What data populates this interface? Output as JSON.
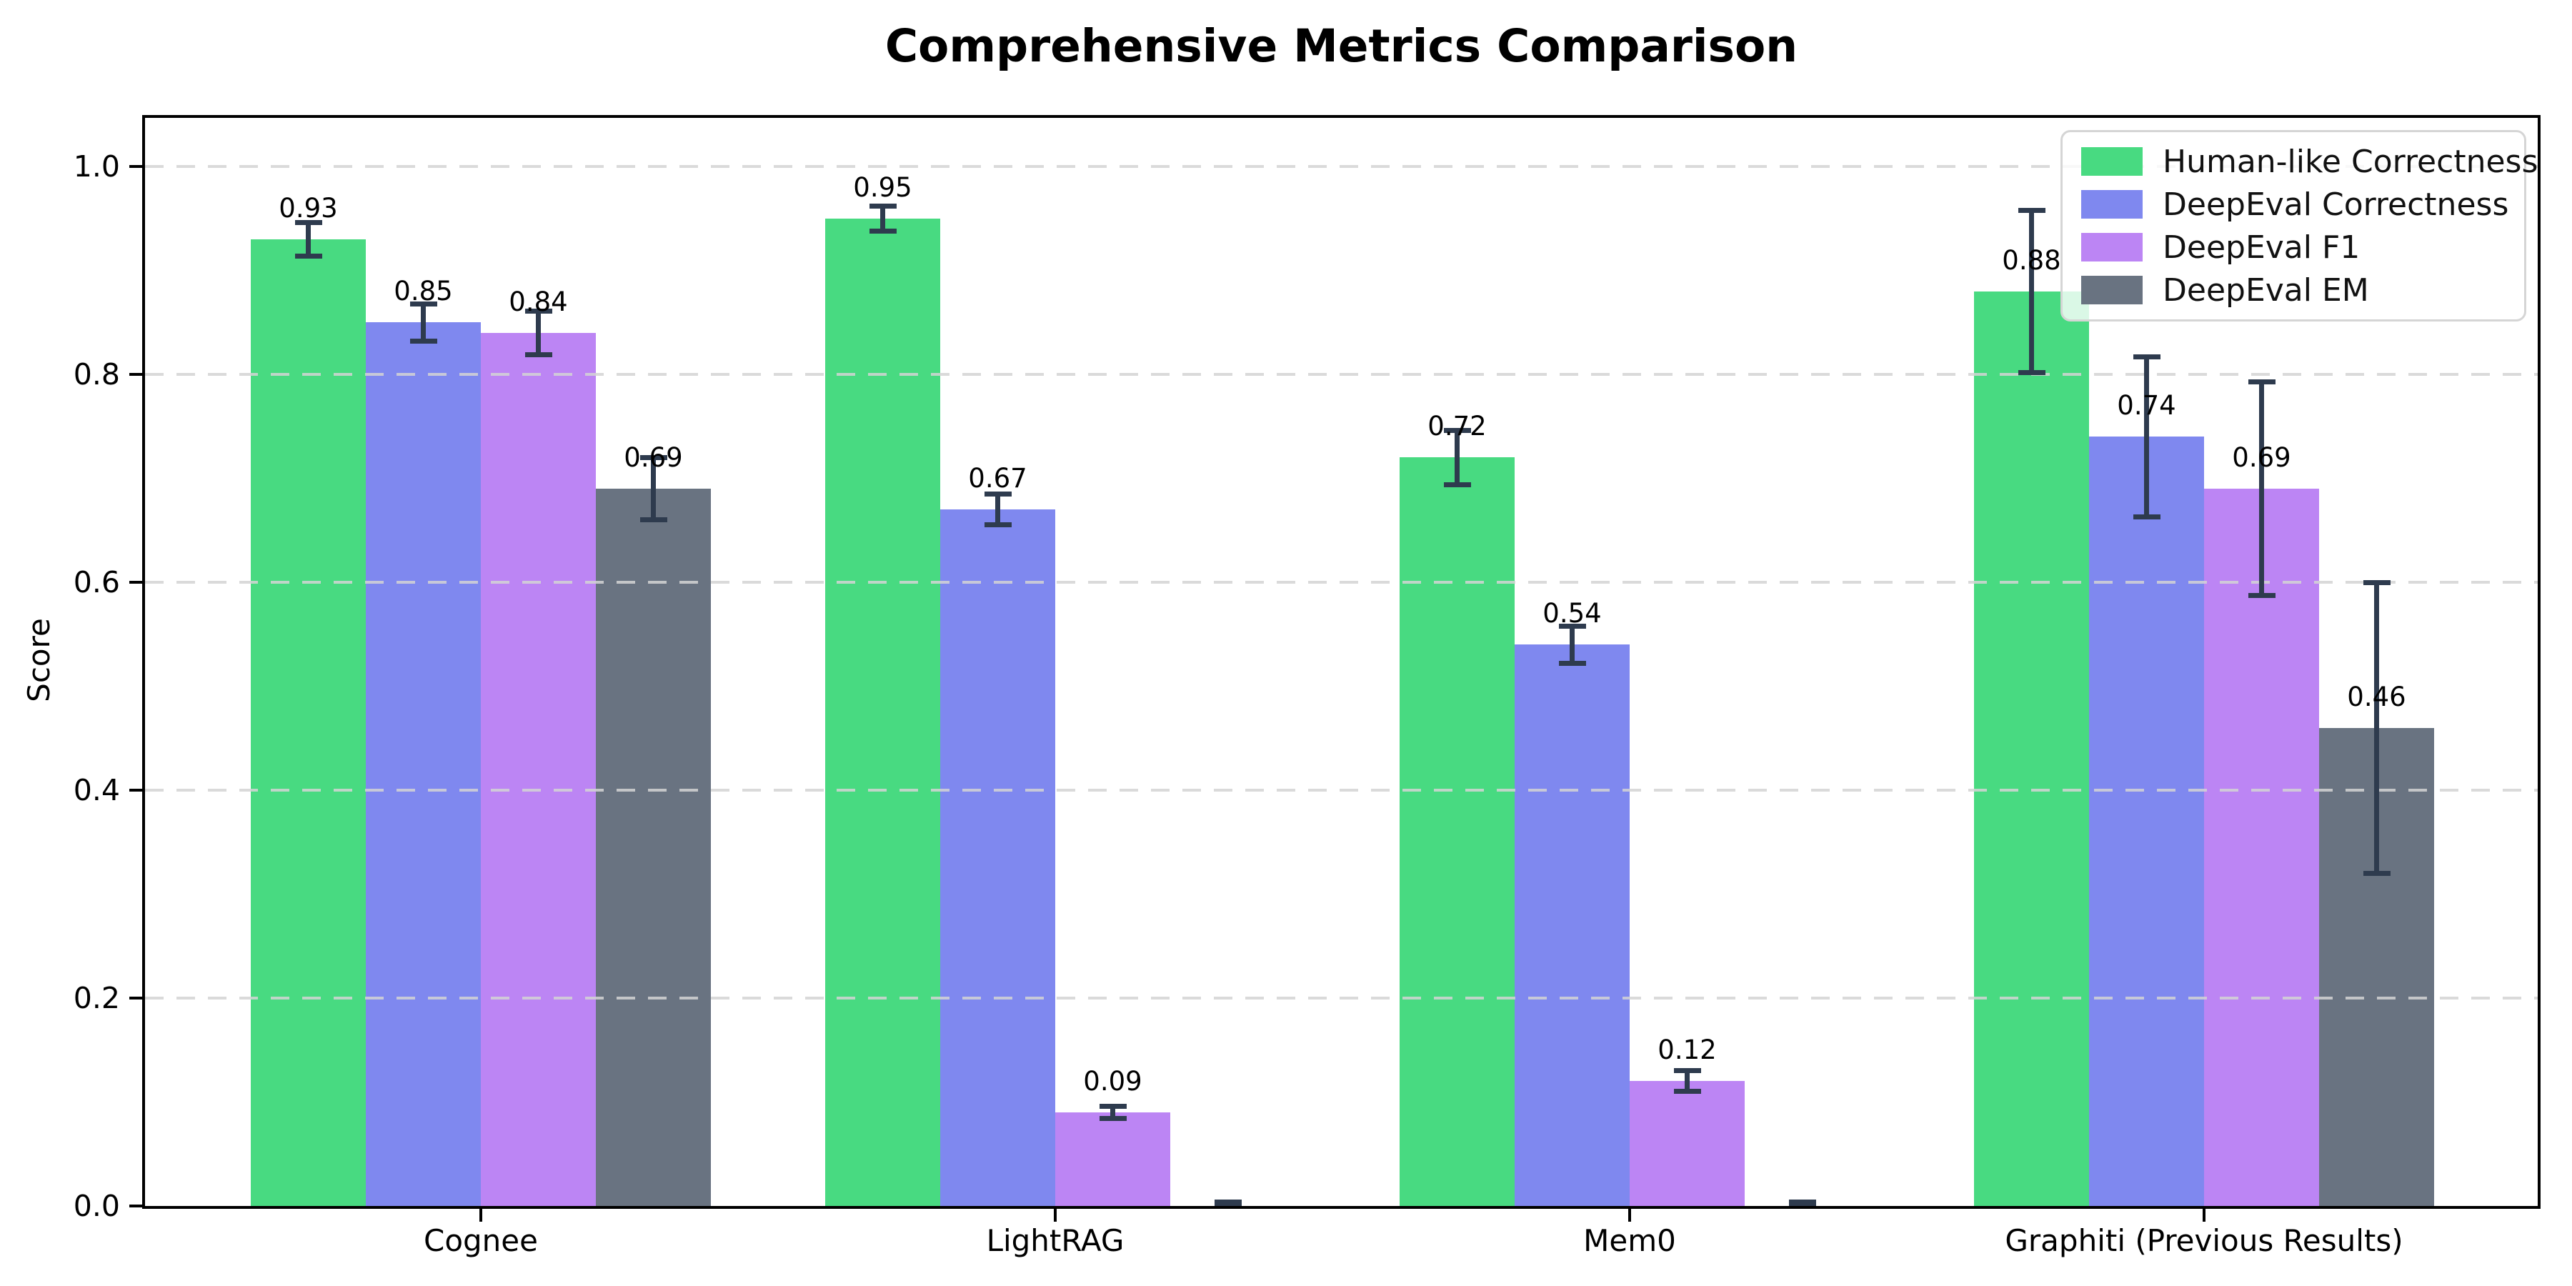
{
  "title": "Comprehensive Metrics Comparison",
  "chart_data": {
    "type": "bar",
    "title": "Comprehensive Metrics Comparison",
    "xlabel": "",
    "ylabel": "Score",
    "ylim": [
      0,
      1.05
    ],
    "yticks": [
      0.0,
      0.2,
      0.4,
      0.6,
      0.8,
      1.0
    ],
    "ytick_labels": [
      "0.0",
      "0.2",
      "0.4",
      "0.6",
      "0.8",
      "1.0"
    ],
    "grid": "horizontal-dashed",
    "grid_color": "#d4d4d4",
    "error_bar_color": "#2e3b4e",
    "background_color": "#ffffff",
    "legend_position": "upper-right",
    "categories": [
      "Cognee",
      "LightRAG",
      "Mem0",
      "Graphiti (Previous Results)"
    ],
    "series": [
      {
        "name": "Human-like Correctness",
        "color": "#48da81",
        "values": [
          0.93,
          0.95,
          0.72,
          0.88
        ],
        "errors": [
          0.016,
          0.012,
          0.026,
          0.078
        ],
        "bar_labels": [
          "0.93",
          "0.95",
          "0.72",
          "0.88"
        ]
      },
      {
        "name": "DeepEval Correctness",
        "color": "#7f88ef",
        "values": [
          0.85,
          0.67,
          0.54,
          0.74
        ],
        "errors": [
          0.018,
          0.015,
          0.018,
          0.077
        ],
        "bar_labels": [
          "0.85",
          "0.67",
          "0.54",
          "0.74"
        ]
      },
      {
        "name": "DeepEval F1",
        "color": "#bc85f4",
        "values": [
          0.84,
          0.09,
          0.12,
          0.69
        ],
        "errors": [
          0.021,
          0.006,
          0.01,
          0.103
        ],
        "bar_labels": [
          "0.84",
          "0.09",
          "0.12",
          "0.69"
        ]
      },
      {
        "name": "DeepEval EM",
        "color": "#697381",
        "values": [
          0.69,
          0.0,
          0.0,
          0.46
        ],
        "errors": [
          0.03,
          0.004,
          0.004,
          0.14
        ],
        "bar_labels": [
          "0.69",
          null,
          null,
          "0.46"
        ]
      }
    ]
  }
}
